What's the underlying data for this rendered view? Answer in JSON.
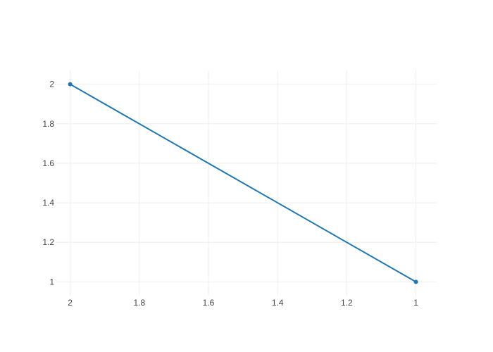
{
  "chart_data": {
    "type": "line",
    "title": "",
    "xlabel": "",
    "ylabel": "",
    "xlim": [
      2.04,
      0.94
    ],
    "ylim": [
      0.93,
      2.07
    ],
    "x_reversed": true,
    "grid": true,
    "legend": "none",
    "x_ticks": [
      2,
      1.8,
      1.6,
      1.4,
      1.2,
      1
    ],
    "x_tick_labels": [
      "2",
      "1.8",
      "1.6",
      "1.4",
      "1.2",
      "1"
    ],
    "y_ticks": [
      1,
      1.2,
      1.4,
      1.6,
      1.8,
      2
    ],
    "y_tick_labels": [
      "1",
      "1.2",
      "1.4",
      "1.6",
      "1.8",
      "2"
    ],
    "series": [
      {
        "x": [
          2,
          1
        ],
        "y": [
          2,
          1
        ],
        "mode": "lines+markers",
        "color": "#1f77b4"
      }
    ]
  }
}
